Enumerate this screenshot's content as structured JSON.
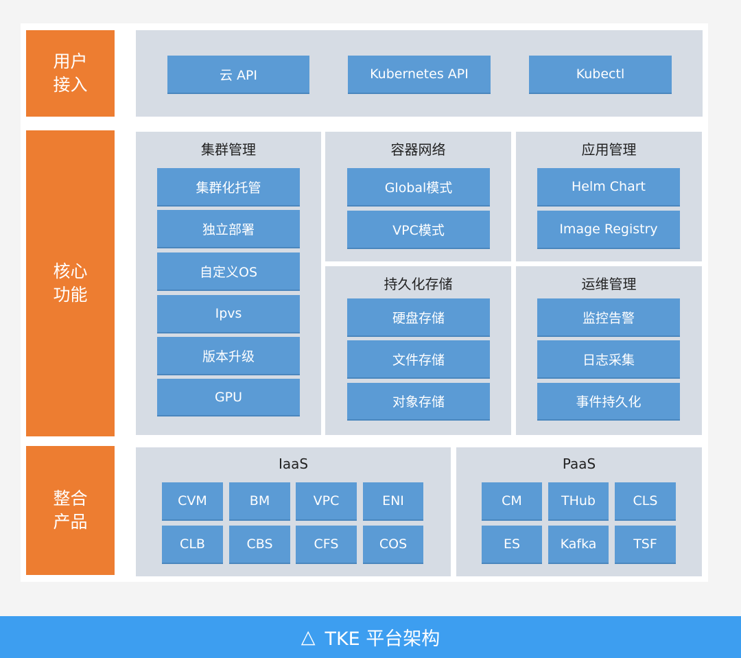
{
  "rows": {
    "user_access": {
      "label": "用户接入",
      "items": [
        "云 API",
        "Kubernetes API",
        "Kubectl"
      ]
    },
    "core": {
      "label": "核心功能",
      "cluster": {
        "title": "集群管理",
        "items": [
          "集群化托管",
          "独立部署",
          "自定义OS",
          "Ipvs",
          "版本升级",
          "GPU"
        ]
      },
      "network": {
        "title": "容器网络",
        "items": [
          "Global模式",
          "VPC模式"
        ]
      },
      "app": {
        "title": "应用管理",
        "items": [
          "Helm Chart",
          "Image Registry"
        ]
      },
      "storage": {
        "title": "持久化存储",
        "items": [
          "硬盘存储",
          "文件存储",
          "对象存储"
        ]
      },
      "ops": {
        "title": "运维管理",
        "items": [
          "监控告警",
          "日志采集",
          "事件持久化"
        ]
      }
    },
    "integration": {
      "label": "整合产品",
      "iaas": {
        "title": "IaaS",
        "items": [
          "CVM",
          "BM",
          "VPC",
          "ENI",
          "CLB",
          "CBS",
          "CFS",
          "COS"
        ]
      },
      "paas": {
        "title": "PaaS",
        "items": [
          "CM",
          "THub",
          "CLS",
          "ES",
          "Kafka",
          "TSF"
        ]
      }
    }
  },
  "caption": {
    "icon": "triangle-icon",
    "symbol": "△",
    "text": "TKE 平台架构"
  },
  "colors": {
    "orange": "#ed7d31",
    "blue": "#5b9bd5",
    "panel": "#d6dce4",
    "footer": "#3d9ef0"
  }
}
